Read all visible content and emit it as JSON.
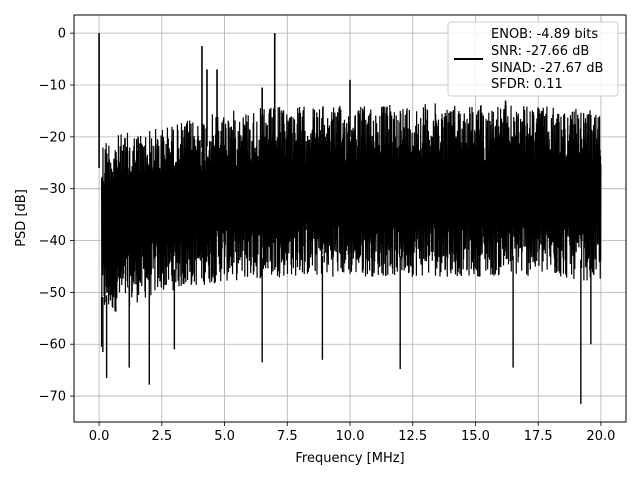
{
  "chart_data": {
    "type": "line",
    "title": "",
    "xlabel": "Frequency [MHz]",
    "ylabel": "PSD [dB]",
    "xlim": [
      -1.0,
      21.0
    ],
    "ylim": [
      -75,
      3.5
    ],
    "xticks": [
      0.0,
      2.5,
      5.0,
      7.5,
      10.0,
      12.5,
      15.0,
      17.5,
      20.0
    ],
    "xtick_labels": [
      "0.0",
      "2.5",
      "5.0",
      "7.5",
      "10.0",
      "12.5",
      "15.0",
      "17.5",
      "20.0"
    ],
    "yticks": [
      0,
      -10,
      -20,
      -30,
      -40,
      -50,
      -60,
      -70
    ],
    "ytick_labels": [
      "0",
      "−10",
      "−20",
      "−30",
      "−40",
      "−50",
      "−60",
      "−70"
    ],
    "grid": true,
    "legend_position": "top-right",
    "legend_entries": [
      "ENOB: -4.89 bits",
      "SNR: -27.66 dB",
      "SINAD: -27.67 dB",
      "SFDR: 0.11"
    ],
    "line_color": "#000000",
    "series": [
      {
        "noise_floor": {
          "x": [
            0.1,
            2.5,
            5.0,
            7.5,
            10.0,
            12.5,
            15.0,
            17.5,
            20.0
          ],
          "upper_envelope": [
            -20,
            -18,
            -15,
            -14,
            -14,
            -13.5,
            -13.5,
            -14,
            -15
          ],
          "lower_envelope": [
            -55,
            -50,
            -48,
            -47,
            -47,
            -47,
            -47,
            -47,
            -48
          ]
        },
        "peaks": [
          {
            "x": 0.0,
            "y": 0.0
          },
          {
            "x": 4.1,
            "y": -2.5
          },
          {
            "x": 4.3,
            "y": -7.0
          },
          {
            "x": 4.7,
            "y": -7.0
          },
          {
            "x": 6.5,
            "y": -10.5
          },
          {
            "x": 7.0,
            "y": 0.0
          },
          {
            "x": 10.0,
            "y": -9.0
          },
          {
            "x": 16.2,
            "y": -13.0
          }
        ],
        "dips": [
          {
            "x": 0.1,
            "y": -60.5
          },
          {
            "x": 0.15,
            "y": -61.5
          },
          {
            "x": 0.3,
            "y": -66.5
          },
          {
            "x": 1.2,
            "y": -64.5
          },
          {
            "x": 2.0,
            "y": -67.8
          },
          {
            "x": 3.0,
            "y": -61.0
          },
          {
            "x": 6.5,
            "y": -63.5
          },
          {
            "x": 8.9,
            "y": -63.0
          },
          {
            "x": 12.0,
            "y": -64.8
          },
          {
            "x": 16.5,
            "y": -64.5
          },
          {
            "x": 19.2,
            "y": -71.5
          },
          {
            "x": 19.6,
            "y": -60.0
          }
        ]
      }
    ]
  }
}
